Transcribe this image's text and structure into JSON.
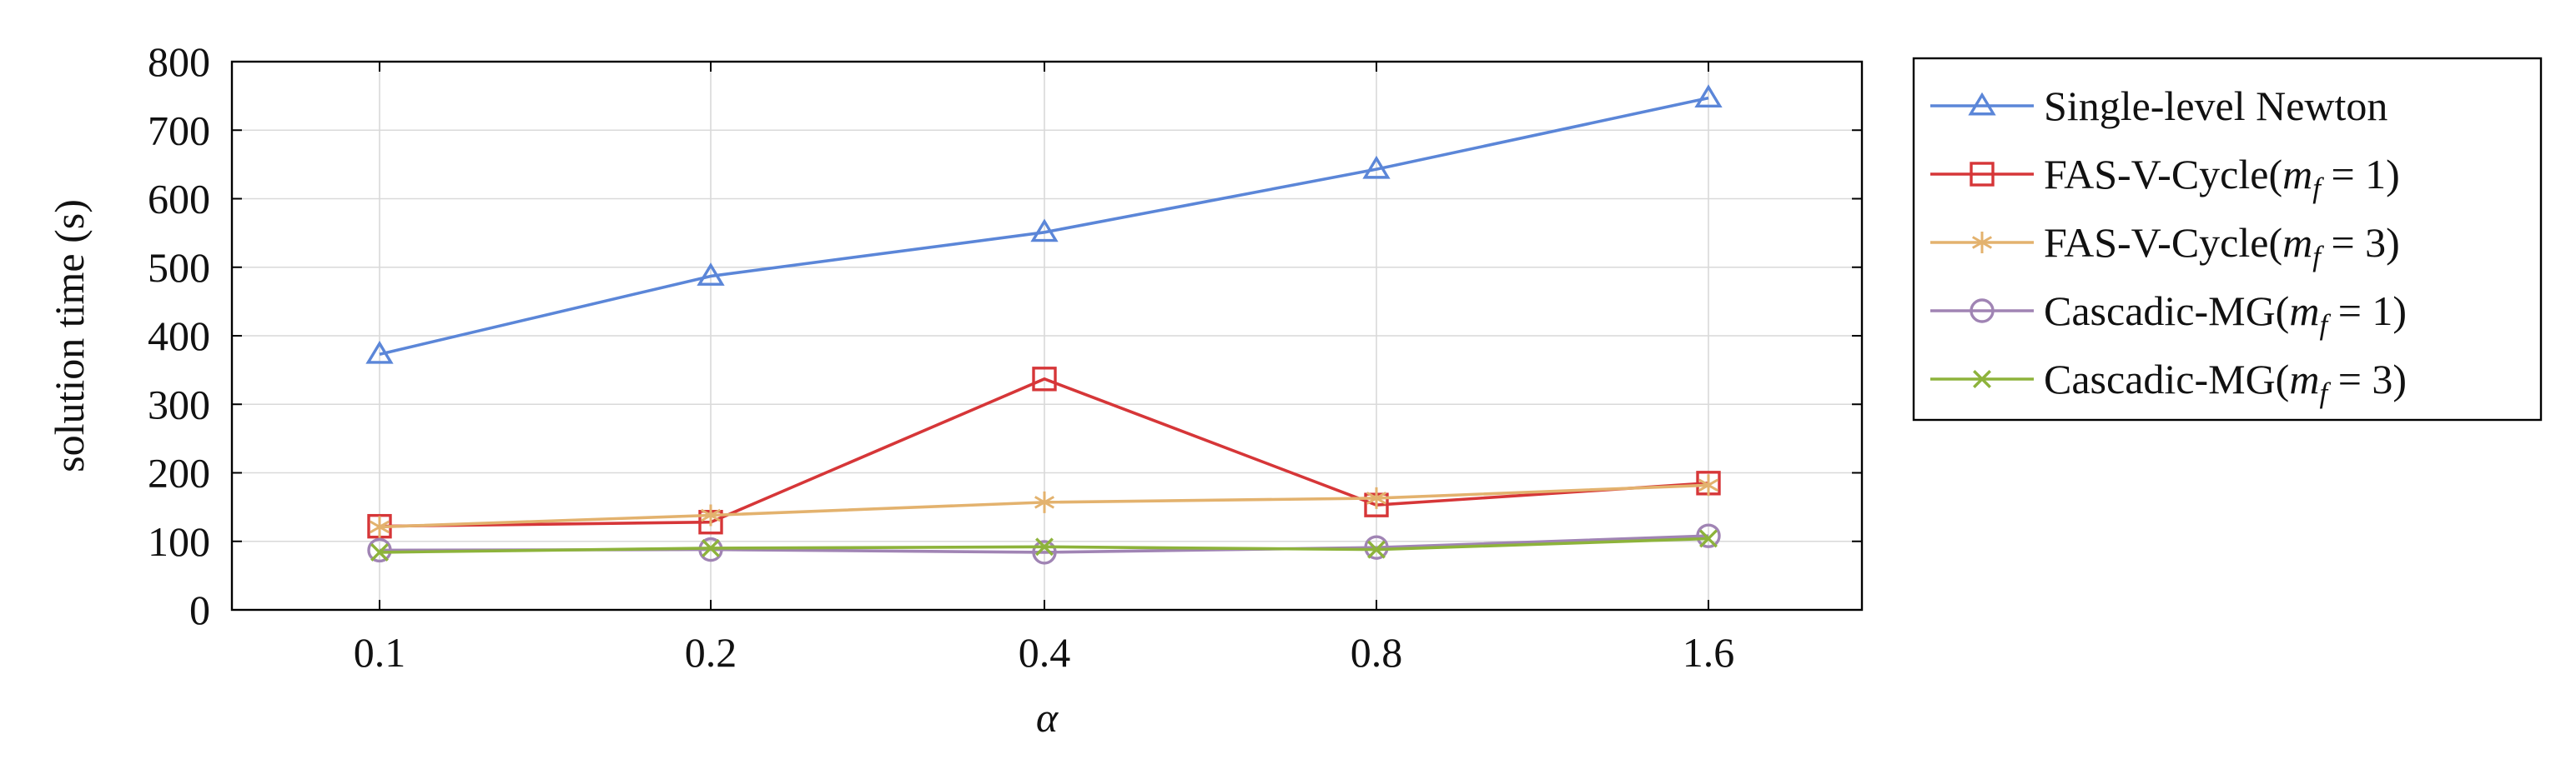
{
  "chart_data": {
    "type": "line",
    "title": "",
    "xlabel": "α",
    "ylabel": "solution time (s)",
    "x_categories": [
      "0.1",
      "0.2",
      "0.4",
      "0.8",
      "1.6"
    ],
    "ylim": [
      0,
      800
    ],
    "y_ticks": [
      0,
      100,
      200,
      300,
      400,
      500,
      600,
      700,
      800
    ],
    "grid": true,
    "legend_placement": "outside-right",
    "series": [
      {
        "legend_name": "Single-level Newton",
        "legend_base": "Single-level Newton",
        "legend_math": "",
        "legend_eq": "",
        "legend_close": "",
        "color": "#5b86d8",
        "marker": "triangle",
        "values": [
          373,
          487,
          551,
          643,
          747
        ]
      },
      {
        "legend_name": "FAS-V-Cycle(m_f = 1)",
        "legend_base": "FAS-V-Cycle(",
        "legend_math": "m",
        "legend_sub": "f",
        "legend_eq": " = 1",
        "legend_close": ")",
        "color": "#d63638",
        "marker": "square",
        "values": [
          122,
          128,
          337,
          153,
          185
        ]
      },
      {
        "legend_name": "FAS-V-Cycle(m_f = 3)",
        "legend_base": "FAS-V-Cycle(",
        "legend_math": "m",
        "legend_sub": "f",
        "legend_eq": " = 3",
        "legend_close": ")",
        "color": "#e3b26e",
        "marker": "asterisk",
        "values": [
          121,
          138,
          157,
          163,
          182
        ]
      },
      {
        "legend_name": "Cascadic-MG(m_f = 1)",
        "legend_base": "Cascadic-MG(",
        "legend_math": "m",
        "legend_sub": "f",
        "legend_eq": " = 1",
        "legend_close": ")",
        "color": "#a084b4",
        "marker": "circle",
        "values": [
          87,
          88,
          84,
          91,
          108
        ]
      },
      {
        "legend_name": "Cascadic-MG(m_f = 3)",
        "legend_base": "Cascadic-MG(",
        "legend_math": "m",
        "legend_sub": "f",
        "legend_eq": " = 3",
        "legend_close": ")",
        "color": "#8db33b",
        "marker": "cross",
        "values": [
          84,
          90,
          92,
          88,
          104
        ]
      }
    ]
  }
}
